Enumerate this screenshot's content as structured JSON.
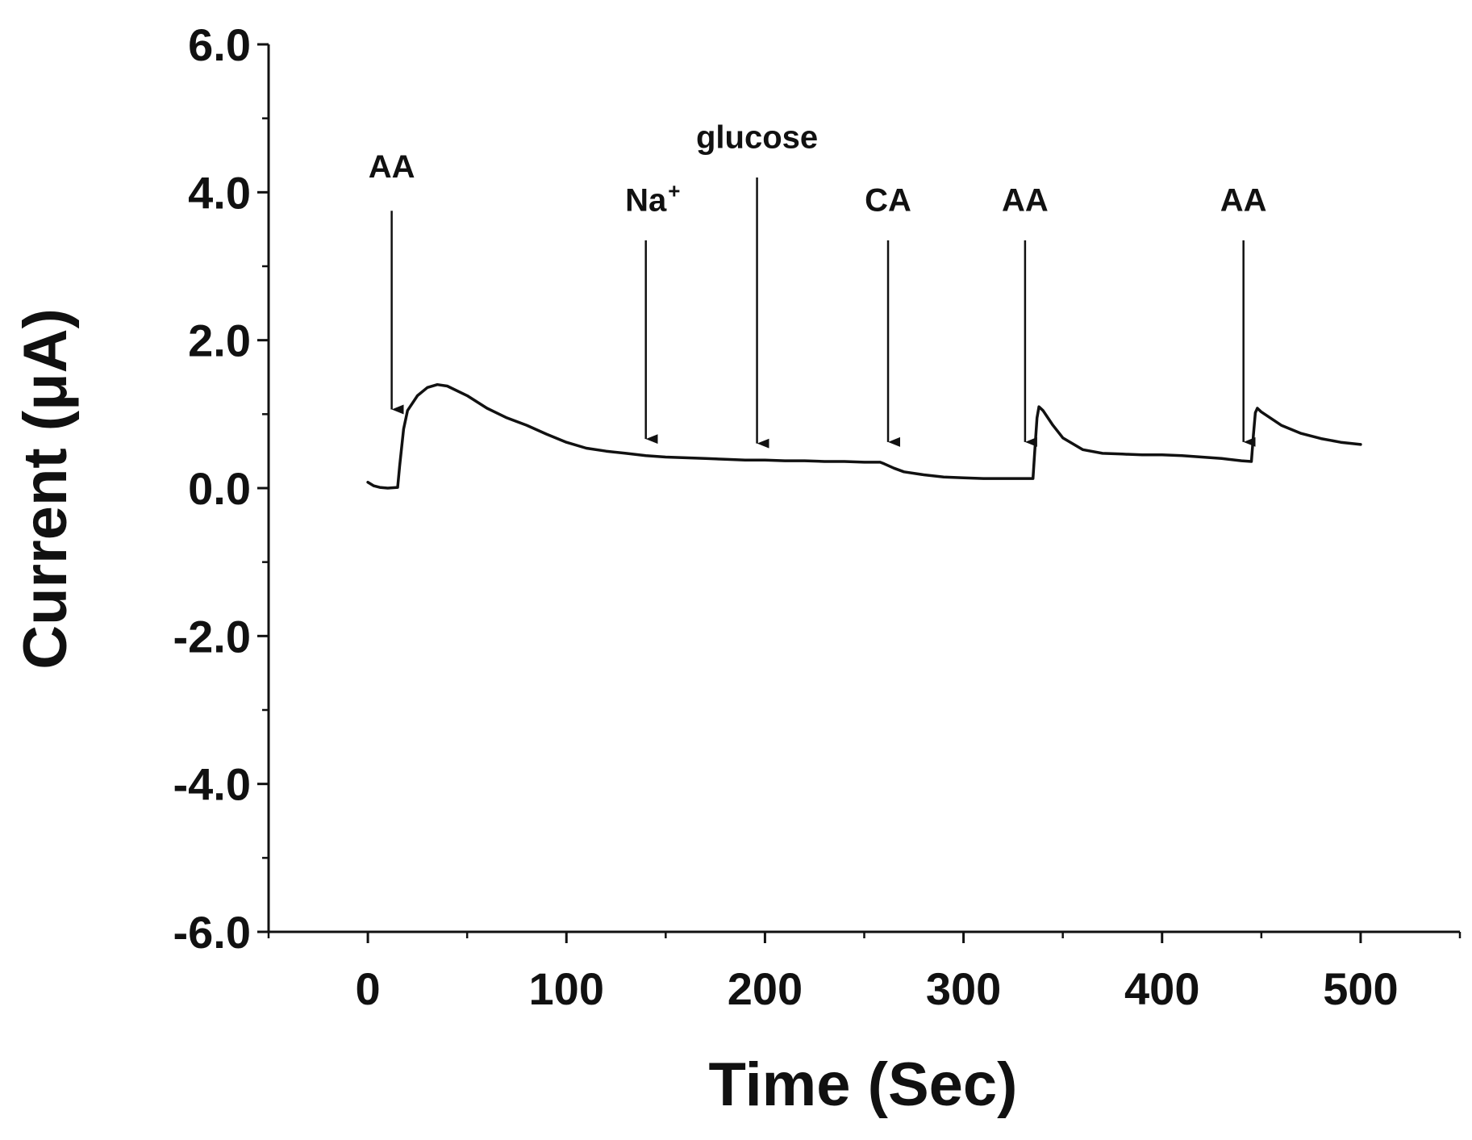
{
  "chart_data": {
    "type": "line",
    "xlabel": "Time (Sec)",
    "ylabel": "Current (μA)",
    "xlim": [
      -50,
      550
    ],
    "ylim": [
      -6.0,
      6.0
    ],
    "xticks": [
      0,
      100,
      200,
      300,
      400,
      500
    ],
    "xtick_labels": [
      "0",
      "100",
      "200",
      "300",
      "400",
      "500"
    ],
    "yticks": [
      -6.0,
      -4.0,
      -2.0,
      0.0,
      2.0,
      4.0,
      6.0
    ],
    "ytick_labels": [
      "-6.0",
      "-4.0",
      "-2.0",
      "0.0",
      "2.0",
      "4.0",
      "6.0"
    ],
    "grid": false,
    "line_color": "#111111",
    "series": [
      {
        "name": "current",
        "x": [
          0,
          3,
          6,
          10,
          15,
          16,
          18,
          20,
          25,
          30,
          35,
          40,
          50,
          60,
          70,
          80,
          90,
          100,
          110,
          120,
          130,
          140,
          150,
          160,
          170,
          180,
          190,
          200,
          210,
          220,
          230,
          240,
          250,
          258,
          260,
          265,
          270,
          280,
          290,
          300,
          310,
          320,
          330,
          335,
          336,
          337,
          338,
          340,
          345,
          350,
          360,
          370,
          380,
          390,
          400,
          410,
          420,
          430,
          440,
          445,
          446,
          447,
          448,
          450,
          460,
          470,
          480,
          490,
          500
        ],
        "y": [
          0.08,
          0.03,
          0.01,
          0.0,
          0.01,
          0.3,
          0.8,
          1.05,
          1.25,
          1.36,
          1.4,
          1.38,
          1.25,
          1.08,
          0.95,
          0.85,
          0.73,
          0.62,
          0.54,
          0.5,
          0.47,
          0.44,
          0.42,
          0.41,
          0.4,
          0.39,
          0.38,
          0.38,
          0.37,
          0.37,
          0.36,
          0.36,
          0.35,
          0.35,
          0.33,
          0.27,
          0.22,
          0.18,
          0.15,
          0.14,
          0.13,
          0.13,
          0.13,
          0.13,
          0.55,
          0.95,
          1.1,
          1.05,
          0.85,
          0.68,
          0.52,
          0.47,
          0.46,
          0.45,
          0.45,
          0.44,
          0.42,
          0.4,
          0.37,
          0.36,
          0.72,
          1.02,
          1.08,
          1.03,
          0.85,
          0.74,
          0.67,
          0.62,
          0.59
        ]
      }
    ],
    "annotations": [
      {
        "label": "AA",
        "sup": "",
        "x": 12,
        "y_top": 3.75,
        "y_tip": 0.9,
        "label_y": 4.2
      },
      {
        "label": "Na",
        "sup": "+",
        "x": 140,
        "y_top": 3.35,
        "y_tip": 0.5,
        "label_y": 3.75
      },
      {
        "label": "glucose",
        "sup": "",
        "x": 196,
        "y_top": 4.2,
        "y_tip": 0.44,
        "label_y": 4.6
      },
      {
        "label": "CA",
        "sup": "",
        "x": 262,
        "y_top": 3.35,
        "y_tip": 0.46,
        "label_y": 3.75
      },
      {
        "label": "AA",
        "sup": "",
        "x": 331,
        "y_top": 3.35,
        "y_tip": 0.46,
        "label_y": 3.75
      },
      {
        "label": "AA",
        "sup": "",
        "x": 441,
        "y_top": 3.35,
        "y_tip": 0.46,
        "label_y": 3.75
      }
    ]
  }
}
